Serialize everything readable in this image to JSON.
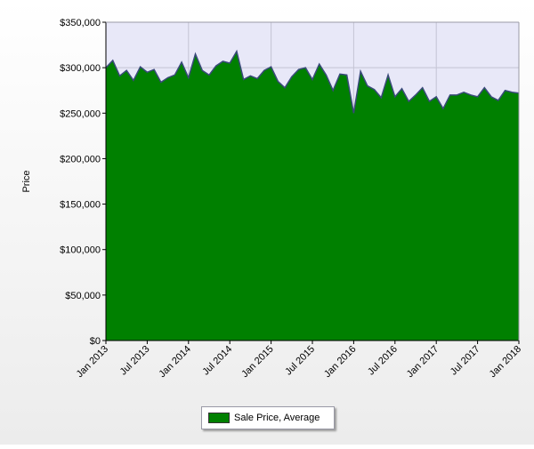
{
  "chart_data": {
    "type": "area",
    "title": "",
    "xlabel": "",
    "ylabel": "Price",
    "ylim": [
      0,
      350000
    ],
    "y_ticks": [
      0,
      50000,
      100000,
      150000,
      200000,
      250000,
      300000,
      350000
    ],
    "y_tick_labels": [
      "$0",
      "$50,000",
      "$100,000",
      "$150,000",
      "$200,000",
      "$250,000",
      "$300,000",
      "$350,000"
    ],
    "x_tick_labels": [
      "Jan 2013",
      "Jul 2013",
      "Jan 2014",
      "Jul 2014",
      "Jan 2015",
      "Jul 2015",
      "Jan 2016",
      "Jul 2016",
      "Jan 2017",
      "Jul 2017",
      "Jan 2018"
    ],
    "x_start": "Jan 2013",
    "x_end": "Jan 2018",
    "grid": true,
    "legend_position": "bottom-center",
    "series": [
      {
        "name": "Sale Price, Average",
        "color": "#008000",
        "line_color": "#3a4a7a",
        "values": [
          300000,
          308000,
          291000,
          297000,
          286000,
          301000,
          295000,
          298000,
          284000,
          289000,
          292000,
          306000,
          289000,
          315000,
          297000,
          292000,
          302000,
          307000,
          305000,
          318000,
          287000,
          291000,
          288000,
          297000,
          301000,
          285000,
          278000,
          290000,
          298000,
          300000,
          287000,
          304000,
          292000,
          275000,
          293000,
          292000,
          250000,
          296000,
          280000,
          276000,
          267000,
          292000,
          268000,
          277000,
          263000,
          270000,
          278000,
          263000,
          268000,
          255000,
          270000,
          270000,
          273000,
          270000,
          268000,
          278000,
          268000,
          264000,
          275000,
          273000,
          272000
        ]
      }
    ]
  }
}
